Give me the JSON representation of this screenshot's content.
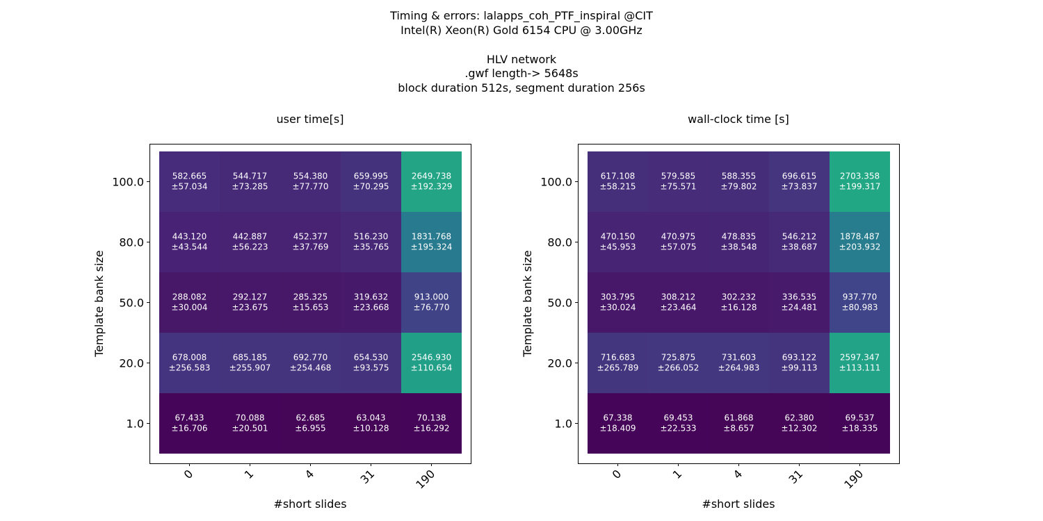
{
  "figure": {
    "title_lines": [
      "Timing & errors: lalapps_coh_PTF_inspiral @CIT",
      "Intel(R) Xeon(R) Gold 6154 CPU @ 3.00GHz",
      "",
      "HLV network",
      ".gwf length-> 5648s",
      "block duration 512s, segment duration 256s"
    ]
  },
  "chart_data": [
    {
      "type": "heatmap",
      "title": "user time[s]",
      "xlabel": "#short slides",
      "ylabel": "Template bank size",
      "x_categories": [
        "0",
        "1",
        "4",
        "31",
        "190"
      ],
      "y_categories": [
        "100.0",
        "80.0",
        "50.0",
        "20.0",
        "1.0"
      ],
      "values": [
        [
          582.665,
          544.717,
          554.38,
          659.995,
          2649.738
        ],
        [
          443.12,
          442.887,
          452.377,
          516.23,
          1831.768
        ],
        [
          288.082,
          292.127,
          285.325,
          319.632,
          913.0
        ],
        [
          678.008,
          685.185,
          692.77,
          654.53,
          2546.93
        ],
        [
          67.433,
          70.088,
          62.685,
          63.043,
          70.138
        ]
      ],
      "errors": [
        [
          57.034,
          73.285,
          77.77,
          70.295,
          192.329
        ],
        [
          43.544,
          56.223,
          37.769,
          35.765,
          195.324
        ],
        [
          30.004,
          23.675,
          15.653,
          23.668,
          76.77
        ],
        [
          256.583,
          255.907,
          254.468,
          93.575,
          110.654
        ],
        [
          16.706,
          20.501,
          6.955,
          10.128,
          16.292
        ]
      ],
      "colormap": "viridis",
      "legend": "none"
    },
    {
      "type": "heatmap",
      "title": "wall-clock time [s]",
      "xlabel": "#short slides",
      "ylabel": "Template bank size",
      "x_categories": [
        "0",
        "1",
        "4",
        "31",
        "190"
      ],
      "y_categories": [
        "100.0",
        "80.0",
        "50.0",
        "20.0",
        "1.0"
      ],
      "values": [
        [
          617.108,
          579.585,
          588.355,
          696.615,
          2703.358
        ],
        [
          470.15,
          470.975,
          478.835,
          546.212,
          1878.487
        ],
        [
          303.795,
          308.212,
          302.232,
          336.535,
          937.77
        ],
        [
          716.683,
          725.875,
          731.603,
          693.122,
          2597.347
        ],
        [
          67.338,
          69.453,
          61.868,
          62.38,
          69.537
        ]
      ],
      "errors": [
        [
          58.215,
          75.571,
          79.802,
          73.837,
          199.317
        ],
        [
          45.953,
          57.075,
          38.548,
          38.687,
          203.932
        ],
        [
          30.024,
          23.464,
          16.128,
          24.481,
          80.983
        ],
        [
          265.789,
          266.052,
          264.983,
          99.113,
          113.111
        ],
        [
          18.409,
          22.533,
          8.657,
          12.302,
          18.335
        ]
      ],
      "colormap": "viridis",
      "legend": "none"
    }
  ]
}
